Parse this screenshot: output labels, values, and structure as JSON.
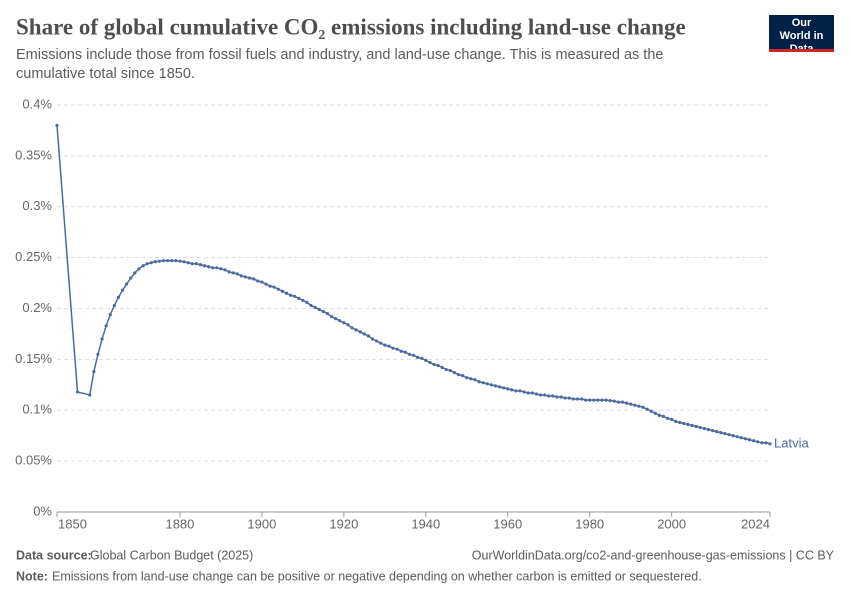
{
  "chart_data": {
    "type": "line",
    "title": "Share of global cumulative CO₂ emissions including land-use change",
    "subtitle": "Emissions include those from fossil fuels and industry, and land-use change. This is measured as the cumulative total since 1850.",
    "logo": "Our World in Data",
    "source_label": "Data source:",
    "source": "Global Carbon Budget (2025)",
    "url": "OurWorldinData.org/co2-and-greenhouse-gas-emissions | CC BY",
    "note_label": "Note:",
    "note": "Emissions from land-use change can be positive or negative depending on whether carbon is emitted or sequestered.",
    "x": [
      1850,
      1855,
      1858,
      1859,
      1860,
      1861,
      1862,
      1863,
      1864,
      1865,
      1866,
      1867,
      1868,
      1869,
      1870,
      1871,
      1872,
      1873,
      1874,
      1875,
      1876,
      1877,
      1878,
      1879,
      1880,
      1881,
      1882,
      1883,
      1884,
      1885,
      1886,
      1887,
      1888,
      1889,
      1890,
      1891,
      1892,
      1893,
      1894,
      1895,
      1896,
      1897,
      1898,
      1899,
      1900,
      1901,
      1902,
      1903,
      1904,
      1905,
      1906,
      1907,
      1908,
      1909,
      1910,
      1911,
      1912,
      1913,
      1914,
      1915,
      1916,
      1917,
      1918,
      1919,
      1920,
      1921,
      1922,
      1923,
      1924,
      1925,
      1926,
      1927,
      1928,
      1929,
      1930,
      1931,
      1932,
      1933,
      1934,
      1935,
      1936,
      1937,
      1938,
      1939,
      1940,
      1941,
      1942,
      1943,
      1944,
      1945,
      1946,
      1947,
      1948,
      1949,
      1950,
      1951,
      1952,
      1953,
      1954,
      1955,
      1956,
      1957,
      1958,
      1959,
      1960,
      1961,
      1962,
      1963,
      1964,
      1965,
      1966,
      1967,
      1968,
      1969,
      1970,
      1971,
      1972,
      1973,
      1974,
      1975,
      1976,
      1977,
      1978,
      1979,
      1980,
      1981,
      1982,
      1983,
      1984,
      1985,
      1986,
      1987,
      1988,
      1989,
      1990,
      1991,
      1992,
      1993,
      1994,
      1995,
      1996,
      1997,
      1998,
      1999,
      2000,
      2001,
      2002,
      2003,
      2004,
      2005,
      2006,
      2007,
      2008,
      2009,
      2010,
      2011,
      2012,
      2013,
      2014,
      2015,
      2016,
      2017,
      2018,
      2019,
      2020,
      2021,
      2022,
      2023,
      2024
    ],
    "series": [
      {
        "name": "Latvia",
        "color": "#4c6a9c",
        "values": [
          0.38,
          0.118,
          0.115,
          0.138,
          0.155,
          0.17,
          0.183,
          0.194,
          0.203,
          0.211,
          0.218,
          0.224,
          0.23,
          0.235,
          0.239,
          0.242,
          0.244,
          0.245,
          0.246,
          0.2465,
          0.247,
          0.247,
          0.247,
          0.247,
          0.2465,
          0.246,
          0.245,
          0.244,
          0.244,
          0.243,
          0.242,
          0.241,
          0.24,
          0.24,
          0.239,
          0.238,
          0.236,
          0.235,
          0.234,
          0.232,
          0.231,
          0.23,
          0.229,
          0.227,
          0.226,
          0.224,
          0.222,
          0.221,
          0.219,
          0.217,
          0.215,
          0.213,
          0.212,
          0.21,
          0.208,
          0.206,
          0.203,
          0.201,
          0.199,
          0.197,
          0.195,
          0.192,
          0.19,
          0.188,
          0.186,
          0.184,
          0.181,
          0.179,
          0.177,
          0.175,
          0.173,
          0.17,
          0.168,
          0.166,
          0.164,
          0.163,
          0.161,
          0.16,
          0.158,
          0.157,
          0.155,
          0.154,
          0.152,
          0.151,
          0.149,
          0.147,
          0.145,
          0.144,
          0.142,
          0.14,
          0.139,
          0.137,
          0.135,
          0.134,
          0.132,
          0.131,
          0.13,
          0.128,
          0.127,
          0.126,
          0.125,
          0.124,
          0.123,
          0.122,
          0.121,
          0.12,
          0.119,
          0.119,
          0.118,
          0.117,
          0.117,
          0.116,
          0.115,
          0.115,
          0.114,
          0.114,
          0.113,
          0.113,
          0.112,
          0.112,
          0.111,
          0.111,
          0.111,
          0.11,
          0.11,
          0.11,
          0.11,
          0.11,
          0.11,
          0.1095,
          0.109,
          0.108,
          0.108,
          0.107,
          0.106,
          0.105,
          0.104,
          0.103,
          0.101,
          0.099,
          0.097,
          0.095,
          0.094,
          0.092,
          0.091,
          0.089,
          0.088,
          0.087,
          0.086,
          0.085,
          0.084,
          0.083,
          0.082,
          0.081,
          0.08,
          0.079,
          0.078,
          0.077,
          0.076,
          0.075,
          0.074,
          0.073,
          0.072,
          0.071,
          0.07,
          0.069,
          0.068,
          0.068,
          0.067
        ]
      }
    ],
    "xlim": [
      1850,
      2024
    ],
    "xticks": [
      1850,
      1880,
      1900,
      1920,
      1940,
      1960,
      1980,
      2000,
      2024
    ],
    "ylim": [
      0,
      0.4
    ],
    "yticks": [
      {
        "value": 0,
        "label": "0%"
      },
      {
        "value": 0.05,
        "label": "0.05%"
      },
      {
        "value": 0.1,
        "label": "0.1%"
      },
      {
        "value": 0.15,
        "label": "0.15%"
      },
      {
        "value": 0.2,
        "label": "0.2%"
      },
      {
        "value": 0.25,
        "label": "0.25%"
      },
      {
        "value": 0.3,
        "label": "0.3%"
      },
      {
        "value": 0.35,
        "label": "0.35%"
      },
      {
        "value": 0.4,
        "label": "0.4%"
      }
    ],
    "grid": true
  }
}
